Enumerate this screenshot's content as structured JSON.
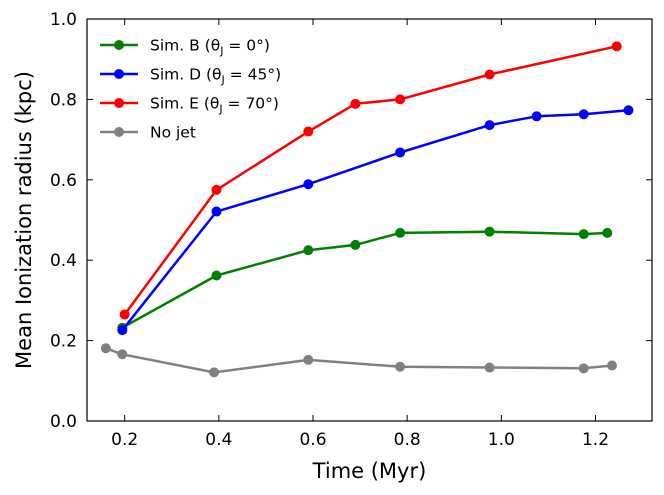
{
  "chart_data": {
    "type": "line",
    "title": "",
    "xlabel": "Time (Myr)",
    "ylabel": "Mean Ionization radius (kpc)",
    "xlim": [
      0.12,
      1.32
    ],
    "ylim": [
      0.0,
      1.0
    ],
    "xticks": [
      0.2,
      0.4,
      0.6,
      0.8,
      1.0,
      1.2
    ],
    "xtick_labels": [
      "0.2",
      "0.4",
      "0.6",
      "0.8",
      "1.0",
      "1.2"
    ],
    "yticks": [
      0.0,
      0.2,
      0.4,
      0.6,
      0.8,
      1.0
    ],
    "ytick_labels": [
      "0.0",
      "0.2",
      "0.4",
      "0.6",
      "0.8",
      "1.0"
    ],
    "grid": false,
    "legend_position": "top-left",
    "series": [
      {
        "name": "Sim. B (θJ = 0°)",
        "legend_label": "Sim. B (θ",
        "legend_sub": "J",
        "legend_suffix": " = 0°)",
        "color": "#008000",
        "x": [
          0.195,
          0.395,
          0.59,
          0.69,
          0.785,
          0.975,
          1.175,
          1.225
        ],
        "y": [
          0.232,
          0.362,
          0.425,
          0.438,
          0.468,
          0.471,
          0.465,
          0.468
        ]
      },
      {
        "name": "Sim. D (θJ = 45°)",
        "legend_label": "Sim. D (θ",
        "legend_sub": "J",
        "legend_suffix": " = 45°)",
        "color": "#0000ff",
        "x": [
          0.195,
          0.395,
          0.59,
          0.785,
          0.975,
          1.075,
          1.175,
          1.27
        ],
        "y": [
          0.226,
          0.521,
          0.589,
          0.668,
          0.736,
          0.758,
          0.763,
          0.773
        ]
      },
      {
        "name": "Sim. E (θJ = 70°)",
        "legend_label": "Sim. E (θ",
        "legend_sub": "J",
        "legend_suffix": " = 70°)",
        "color": "#ff0000",
        "x": [
          0.2,
          0.395,
          0.59,
          0.69,
          0.785,
          0.975,
          1.245
        ],
        "y": [
          0.265,
          0.575,
          0.72,
          0.789,
          0.8,
          0.862,
          0.932
        ]
      },
      {
        "name": "No jet",
        "legend_label": "No jet",
        "legend_sub": "",
        "legend_suffix": "",
        "color": "#808080",
        "x": [
          0.16,
          0.195,
          0.39,
          0.59,
          0.785,
          0.975,
          1.175,
          1.235
        ],
        "y": [
          0.181,
          0.166,
          0.121,
          0.152,
          0.135,
          0.133,
          0.131,
          0.138
        ]
      }
    ]
  }
}
